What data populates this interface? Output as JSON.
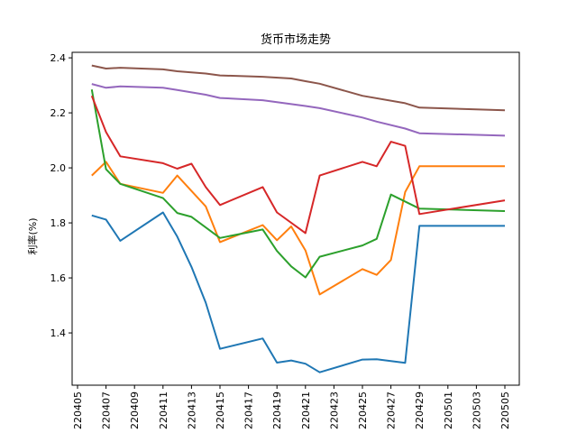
{
  "chart_data": {
    "type": "line",
    "title": "货币市场走势",
    "xlabel": "",
    "ylabel": "利率(%)",
    "x_ticks": [
      "220405",
      "220407",
      "220409",
      "220411",
      "220413",
      "220415",
      "220417",
      "220419",
      "220421",
      "220423",
      "220425",
      "220427",
      "220429",
      "220501",
      "220503",
      "220505"
    ],
    "y_ticks": [
      "1.4",
      "1.6",
      "1.8",
      "2.0",
      "2.2",
      "2.4"
    ],
    "xlim": [
      220405,
      220505
    ],
    "ylim": [
      1.21,
      2.42
    ],
    "grid": false,
    "legend": "none",
    "series": [
      {
        "color": "#1f77b4",
        "points": [
          [
            220406,
            1.827
          ],
          [
            220407,
            1.812
          ],
          [
            220408,
            1.735
          ],
          [
            220411,
            1.838
          ],
          [
            220412,
            1.75
          ],
          [
            220413,
            1.64
          ],
          [
            220414,
            1.51
          ],
          [
            220415,
            1.342
          ],
          [
            220418,
            1.38
          ],
          [
            220419,
            1.292
          ],
          [
            220420,
            1.3
          ],
          [
            220421,
            1.288
          ],
          [
            220422,
            1.257
          ],
          [
            220425,
            1.303
          ],
          [
            220426,
            1.304
          ],
          [
            220428,
            1.291
          ],
          [
            220429,
            1.789
          ],
          [
            220505,
            1.789
          ]
        ]
      },
      {
        "color": "#ff7f0e",
        "points": [
          [
            220406,
            1.972
          ],
          [
            220407,
            2.022
          ],
          [
            220408,
            1.942
          ],
          [
            220411,
            1.909
          ],
          [
            220412,
            1.972
          ],
          [
            220414,
            1.86
          ],
          [
            220415,
            1.73
          ],
          [
            220418,
            1.792
          ],
          [
            220419,
            1.737
          ],
          [
            220420,
            1.787
          ],
          [
            220421,
            1.7
          ],
          [
            220422,
            1.54
          ],
          [
            220425,
            1.632
          ],
          [
            220426,
            1.611
          ],
          [
            220427,
            1.665
          ],
          [
            220428,
            1.912
          ],
          [
            220429,
            2.006
          ],
          [
            220505,
            2.006
          ]
        ]
      },
      {
        "color": "#2ca02c",
        "points": [
          [
            220406,
            2.285
          ],
          [
            220407,
            1.995
          ],
          [
            220408,
            1.942
          ],
          [
            220411,
            1.89
          ],
          [
            220412,
            1.836
          ],
          [
            220413,
            1.822
          ],
          [
            220415,
            1.745
          ],
          [
            220418,
            1.776
          ],
          [
            220419,
            1.698
          ],
          [
            220420,
            1.642
          ],
          [
            220421,
            1.602
          ],
          [
            220422,
            1.677
          ],
          [
            220425,
            1.718
          ],
          [
            220426,
            1.742
          ],
          [
            220427,
            1.903
          ],
          [
            220429,
            1.852
          ],
          [
            220505,
            1.843
          ]
        ]
      },
      {
        "color": "#d62728",
        "points": [
          [
            220406,
            2.262
          ],
          [
            220407,
            2.13
          ],
          [
            220408,
            2.042
          ],
          [
            220411,
            2.017
          ],
          [
            220412,
            1.997
          ],
          [
            220413,
            2.015
          ],
          [
            220414,
            1.93
          ],
          [
            220415,
            1.865
          ],
          [
            220418,
            1.93
          ],
          [
            220419,
            1.838
          ],
          [
            220421,
            1.763
          ],
          [
            220422,
            1.972
          ],
          [
            220425,
            2.022
          ],
          [
            220426,
            2.006
          ],
          [
            220427,
            2.095
          ],
          [
            220428,
            2.08
          ],
          [
            220429,
            1.832
          ],
          [
            220505,
            1.882
          ]
        ]
      },
      {
        "color": "#9467bd",
        "points": [
          [
            220406,
            2.305
          ],
          [
            220407,
            2.291
          ],
          [
            220408,
            2.296
          ],
          [
            220411,
            2.291
          ],
          [
            220412,
            2.283
          ],
          [
            220414,
            2.266
          ],
          [
            220415,
            2.254
          ],
          [
            220418,
            2.246
          ],
          [
            220419,
            2.239
          ],
          [
            220421,
            2.225
          ],
          [
            220422,
            2.217
          ],
          [
            220425,
            2.183
          ],
          [
            220426,
            2.168
          ],
          [
            220428,
            2.143
          ],
          [
            220429,
            2.126
          ],
          [
            220505,
            2.117
          ]
        ]
      },
      {
        "color": "#8c564b",
        "points": [
          [
            220406,
            2.372
          ],
          [
            220407,
            2.361
          ],
          [
            220408,
            2.364
          ],
          [
            220411,
            2.358
          ],
          [
            220412,
            2.351
          ],
          [
            220414,
            2.343
          ],
          [
            220415,
            2.336
          ],
          [
            220418,
            2.331
          ],
          [
            220420,
            2.325
          ],
          [
            220421,
            2.315
          ],
          [
            220422,
            2.306
          ],
          [
            220425,
            2.262
          ],
          [
            220428,
            2.235
          ],
          [
            220429,
            2.219
          ],
          [
            220505,
            2.209
          ]
        ]
      }
    ]
  }
}
